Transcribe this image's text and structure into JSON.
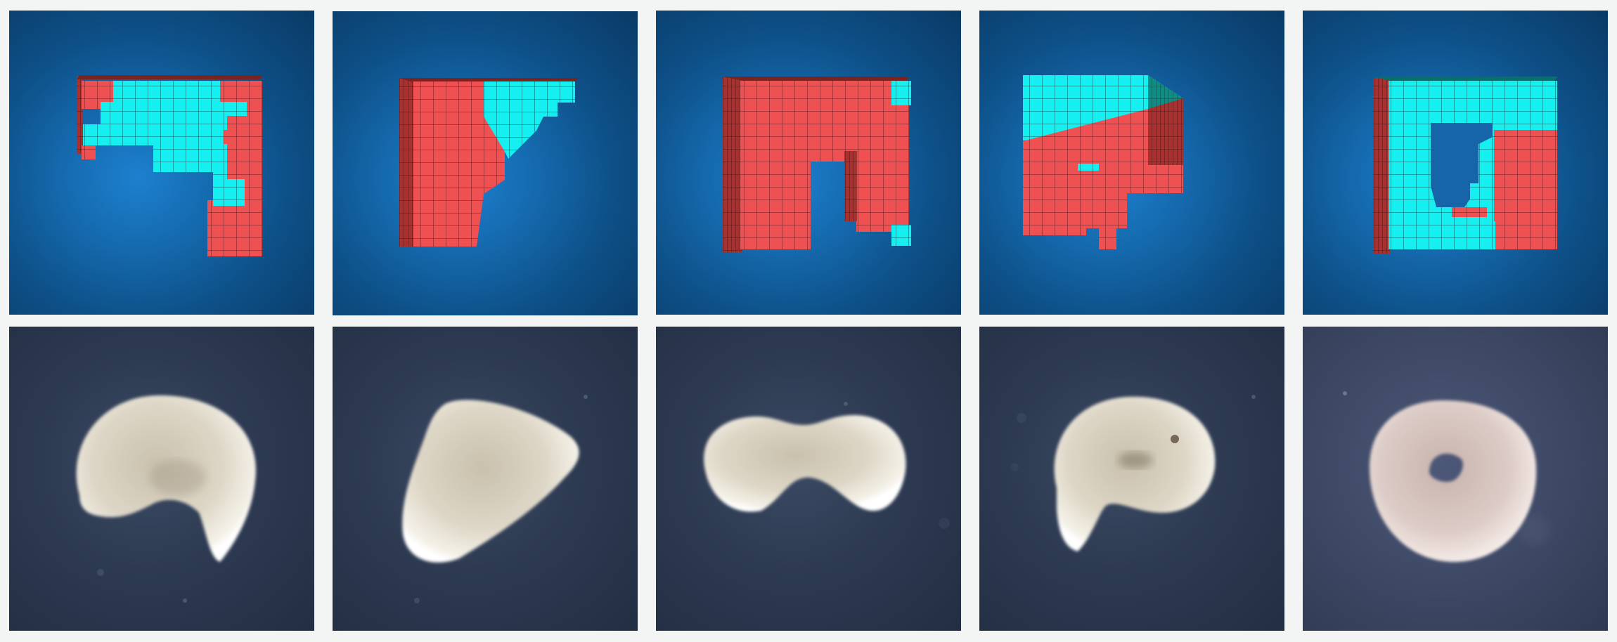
{
  "figure": {
    "rows": [
      "voxel-render",
      "specimen-photo"
    ],
    "columns": 5,
    "colors": {
      "render_background": "#1463a6",
      "photo_background": "#2a3650",
      "voxel_red": "#ef5052",
      "voxel_red_side": "#a8312f",
      "voxel_cyan": "#14f0f0",
      "voxel_cyan_side": "#0f8c84",
      "specimen_tissue": "#d9d3c4"
    }
  }
}
